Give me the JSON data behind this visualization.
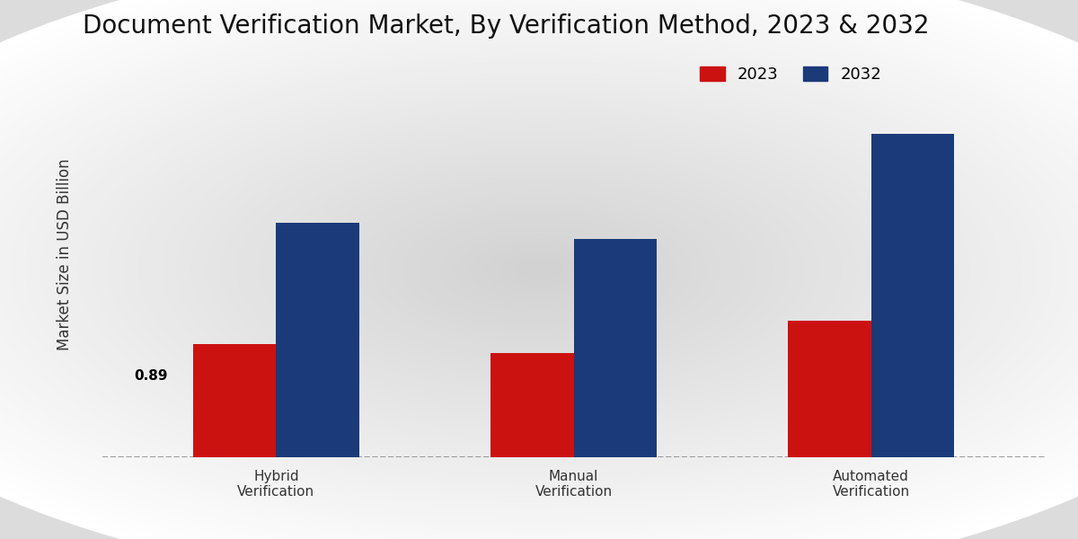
{
  "title": "Document Verification Market, By Verification Method, 2023 & 2032",
  "ylabel": "Market Size in USD Billion",
  "categories": [
    "Hybrid\nVerification",
    "Manual\nVerification",
    "Automated\nVerification"
  ],
  "values_2023": [
    0.89,
    0.82,
    1.08
  ],
  "values_2032": [
    1.85,
    1.72,
    2.55
  ],
  "color_2023": "#CC1111",
  "color_2032": "#1B3A7A",
  "bar_annotation": "0.89",
  "bar_annotation_index": 0,
  "legend_labels": [
    "2023",
    "2032"
  ],
  "ylim": [
    0,
    3.2
  ],
  "bar_width": 0.28,
  "title_fontsize": 20,
  "axis_label_fontsize": 12,
  "tick_fontsize": 11,
  "legend_fontsize": 13,
  "bg_outer": "#D0D0D0",
  "bg_inner": "#F2F2F2"
}
